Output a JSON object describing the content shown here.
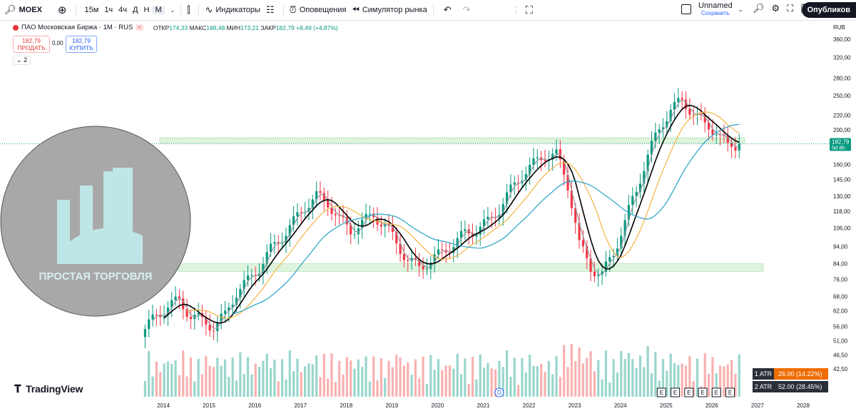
{
  "toolbar": {
    "symbol": "MOEX",
    "intervals": [
      "15м",
      "1ч",
      "4ч",
      "Д",
      "Н",
      "М"
    ],
    "active_interval": "М",
    "indicators": "Индикаторы",
    "alerts": "Оповещения",
    "replay": "Симулятор рынка",
    "layout_name": "Unnamed",
    "layout_status": "Сохранить",
    "publish": "Опубликов"
  },
  "legend": {
    "title": "ПАО Московская Биржа · 1М · RUS",
    "open_label": "ОТКР",
    "open": "174,33",
    "high_label": "МАКС",
    "high": "188,48",
    "low_label": "МИН",
    "low": "173,21",
    "close_label": "ЗАКР",
    "close": "182,79",
    "change": "+8,49 (+4,87%)",
    "sell_price": "182,79",
    "sell_label": "ПРОДАТЬ",
    "spread": "0,00",
    "buy_price": "182,79",
    "buy_label": "КУПИТЬ",
    "collapsed_count": "2"
  },
  "price_axis": {
    "currency": "RUB",
    "last_price": "182,79",
    "countdown": "5d 8h"
  },
  "watermark": {
    "text": "ПРОСТАЯ ТОРГОВЛЯ"
  },
  "brand": "TradingView",
  "atr_boxes": [
    {
      "label": "1 ATR",
      "value": "26.00 (14.22%)",
      "color": "#ef6c00"
    },
    {
      "label": "2 ATR",
      "value": "52.00 (28.45%)",
      "color": "#2a2e39"
    }
  ],
  "event_markers": [
    "D",
    "E",
    "E",
    "E",
    "E",
    "E",
    "E"
  ],
  "chart_data": {
    "type": "candlestick",
    "interval": "1M",
    "y_scale": "log",
    "y_ticks": [
      "360,00",
      "320,00",
      "280,00",
      "250,00",
      "220,00",
      "200,00",
      "160,00",
      "145,00",
      "130,00",
      "118,00",
      "106,00",
      "94,00",
      "84,00",
      "76,00",
      "68,00",
      "62,00",
      "56,00",
      "51,00",
      "46,50",
      "42,50"
    ],
    "y_tick_values": [
      360,
      320,
      280,
      250,
      220,
      200,
      160,
      145,
      130,
      118,
      106,
      94,
      84,
      76,
      68,
      62,
      56,
      51,
      46.5,
      42.5
    ],
    "x_ticks": [
      "2014",
      "2015",
      "2016",
      "2017",
      "2018",
      "2019",
      "2020",
      "2021",
      "2022",
      "2023",
      "2024",
      "2025",
      "2026",
      "2027",
      "2028"
    ],
    "ylim": [
      39,
      380
    ],
    "support_resistance_zones": [
      [
        184,
        190
      ],
      [
        80,
        84
      ]
    ],
    "series": [
      {
        "name": "MOEX",
        "kind": "candles",
        "start_year": 2013.6,
        "close_by_quarter": [
          55,
          60,
          64,
          66,
          60,
          58,
          56,
          60,
          70,
          75,
          82,
          92,
          100,
          110,
          122,
          130,
          125,
          112,
          104,
          110,
          115,
          108,
          96,
          86,
          82,
          86,
          90,
          96,
          102,
          105,
          110,
          120,
          135,
          150,
          160,
          170,
          170,
          140,
          95,
          82,
          78,
          90,
          110,
          135,
          170,
          200,
          230,
          240,
          225,
          205,
          200,
          178,
          183
        ]
      },
      {
        "name": "MA fast",
        "kind": "line",
        "color": "#9598a1"
      },
      {
        "name": "MA mid",
        "kind": "line",
        "color": "#000000"
      },
      {
        "name": "MA slow",
        "kind": "line",
        "color": "#f5b342"
      },
      {
        "name": "MA long",
        "kind": "line",
        "color": "#26a3c8"
      }
    ]
  }
}
